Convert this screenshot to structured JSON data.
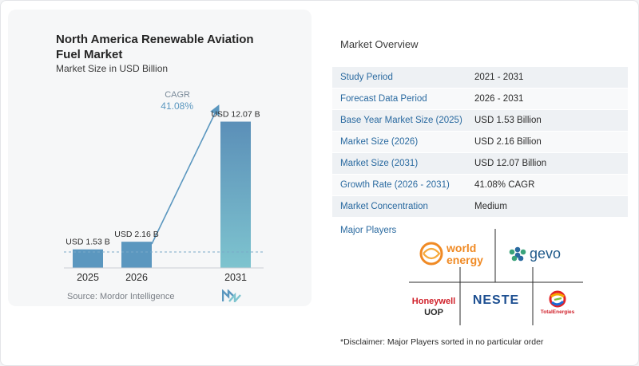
{
  "chart": {
    "title": "North America Renewable Aviation Fuel Market",
    "subtitle": "Market Size in USD Billion",
    "cagr_label": "CAGR",
    "cagr_value": "41.08%",
    "source": "Source:  Mordor Intelligence",
    "logo_name": "Mordor Intelligence"
  },
  "chart_data": {
    "type": "bar",
    "categories": [
      "2025",
      "2026",
      "2031"
    ],
    "values": [
      1.53,
      2.16,
      12.07
    ],
    "data_labels": [
      "USD 1.53 B",
      "USD 2.16 B",
      "USD 12.07 B"
    ],
    "title": "North America Renewable Aviation Fuel Market",
    "subtitle": "Market Size in USD Billion",
    "annotation": "CAGR 41.08%",
    "colors": {
      "bar_low": "#5b97bf",
      "bar_2031_top": "#5b8fb8",
      "bar_2031_bottom": "#7ec4cf"
    }
  },
  "overview": {
    "title": "Market Overview",
    "rows": [
      {
        "label": "Study Period",
        "value": "2021 - 2031"
      },
      {
        "label": "Forecast Data Period",
        "value": "2026 - 2031"
      },
      {
        "label": "Base Year Market Size (2025)",
        "value": "USD 1.53 Billion"
      },
      {
        "label": "Market Size (2026)",
        "value": "USD 2.16 Billion"
      },
      {
        "label": "Market Size (2031)",
        "value": "USD 12.07 Billion"
      },
      {
        "label": "Growth Rate (2026 - 2031)",
        "value": "41.08% CAGR"
      },
      {
        "label": "Market Concentration",
        "value": "Medium"
      }
    ]
  },
  "players": {
    "title": "Major Players",
    "logos": {
      "world_energy": [
        "world",
        "energy"
      ],
      "gevo": "gevo",
      "honeywell": [
        "Honeywell",
        "UOP"
      ],
      "neste": "NESTE",
      "total": "TotalEnergies"
    }
  },
  "disclaimer": "*Disclaimer: Major Players sorted in no particular order",
  "colors": {
    "accent": "#2a6aa0",
    "bar": "#5b97bf",
    "teal": "#7ec4cf",
    "row_odd": "#eef1f4"
  }
}
